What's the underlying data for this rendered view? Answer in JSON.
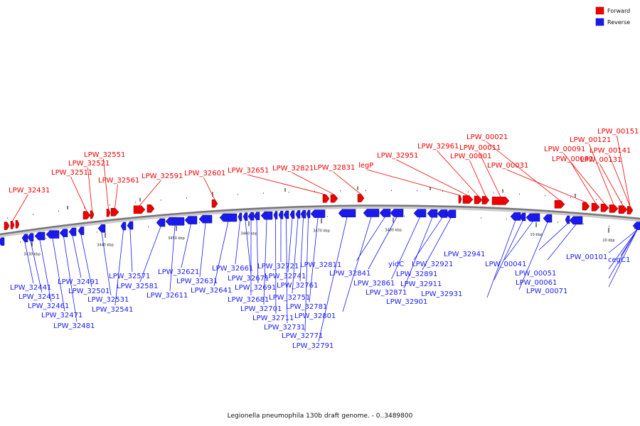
{
  "caption": "Legionella pneumophila 130b draft genome. - 0..3489800",
  "colors": {
    "forward": "#ee0000",
    "reverse": "#1a1aee",
    "backbone": "#777777"
  },
  "legend": [
    {
      "label": "Forward",
      "color": "#ee0000"
    },
    {
      "label": "Reverse",
      "color": "#1a1aee"
    }
  ],
  "ticks": [
    "3430 kbp",
    "3440 kbp",
    "3450 kbp",
    "3460 kbp",
    "3470 kbp",
    "3480 kbp",
    "10 kbp",
    "20 kbp"
  ],
  "forward_labels": [
    "LPW_32431",
    "LPW_32511",
    "LPW_32521",
    "LPW_32551",
    "LPW_32561",
    "LPW_32591",
    "LPW_32601",
    "LPW_32651",
    "LPW_32821",
    "LPW_32831",
    "legP",
    "LPW_32951",
    "LPW_32961",
    "LPW_00001",
    "LPW_00011",
    "LPW_00021",
    "LPW_00031",
    "LPW_00081",
    "LPW_00091",
    "LPW_00121",
    "LPW_00131",
    "LPW_00141",
    "LPW_00151"
  ],
  "reverse_labels": [
    "LPW_32441",
    "LPW_32451",
    "LPW_32461",
    "LPW_32471",
    "LPW_32481",
    "LPW_32491",
    "LPW_32501",
    "LPW_32531",
    "LPW_32541",
    "LPW_32571",
    "LPW_32581",
    "LPW_32611",
    "LPW_32621",
    "LPW_32631",
    "LPW_32641",
    "LPW_32661",
    "LPW_32671",
    "LPW_32681",
    "LPW_32691",
    "LPW_32701",
    "LPW_32711",
    "LPW_32721",
    "LPW_32731",
    "LPW_32741",
    "LPW_32751",
    "LPW_32761",
    "LPW_32771",
    "LPW_32781",
    "LPW_32791",
    "LPW_32801",
    "LPW_32811",
    "LPW_32841",
    "LPW_32861",
    "LPW_32871",
    "yidC",
    "LPW_32891",
    "LPW_32901",
    "LPW_32911",
    "LPW_32921",
    "LPW_32931",
    "LPW_32941",
    "LPW_00041",
    "LPW_00051",
    "LPW_00061",
    "LPW_00071",
    "LPW_00101",
    "cegC1"
  ]
}
